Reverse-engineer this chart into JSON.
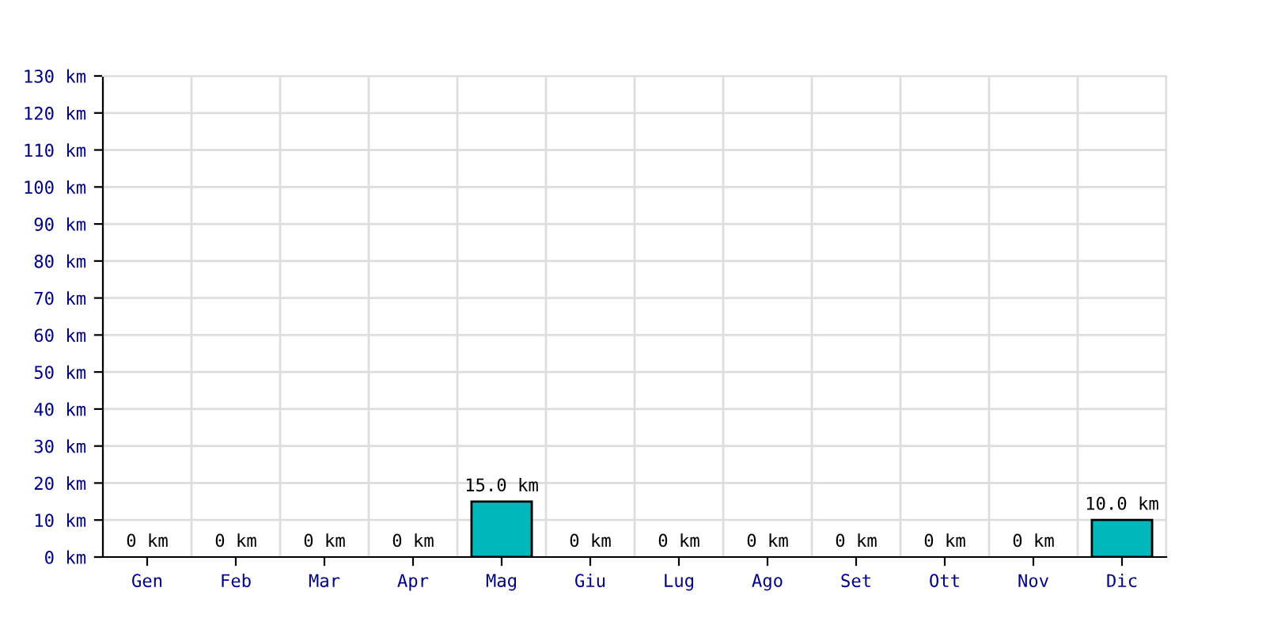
{
  "chart_data": {
    "type": "bar",
    "categories": [
      "Gen",
      "Feb",
      "Mar",
      "Apr",
      "Mag",
      "Giu",
      "Lug",
      "Ago",
      "Set",
      "Ott",
      "Nov",
      "Dic"
    ],
    "values": [
      0,
      0,
      0,
      0,
      15.0,
      0,
      0,
      0,
      0,
      0,
      0,
      10.0
    ],
    "value_labels": [
      "0 km",
      "0 km",
      "0 km",
      "0 km",
      "15.0 km",
      "0 km",
      "0 km",
      "0 km",
      "0 km",
      "0 km",
      "0 km",
      "10.0 km"
    ],
    "color": "#00b8bc",
    "ylim": [
      0,
      130
    ],
    "yticks": [
      {
        "value": 0,
        "label": "0 km"
      },
      {
        "value": 10,
        "label": "10 km"
      },
      {
        "value": 20,
        "label": "20 km"
      },
      {
        "value": 30,
        "label": "30 km"
      },
      {
        "value": 40,
        "label": "40 km"
      },
      {
        "value": 50,
        "label": "50 km"
      },
      {
        "value": 60,
        "label": "60 km"
      },
      {
        "value": 70,
        "label": "70 km"
      },
      {
        "value": 80,
        "label": "80 km"
      },
      {
        "value": 90,
        "label": "90 km"
      },
      {
        "value": 100,
        "label": "100 km"
      },
      {
        "value": 110,
        "label": "110 km"
      },
      {
        "value": 120,
        "label": "120 km"
      },
      {
        "value": 130,
        "label": "130 km"
      }
    ],
    "grid": true
  }
}
